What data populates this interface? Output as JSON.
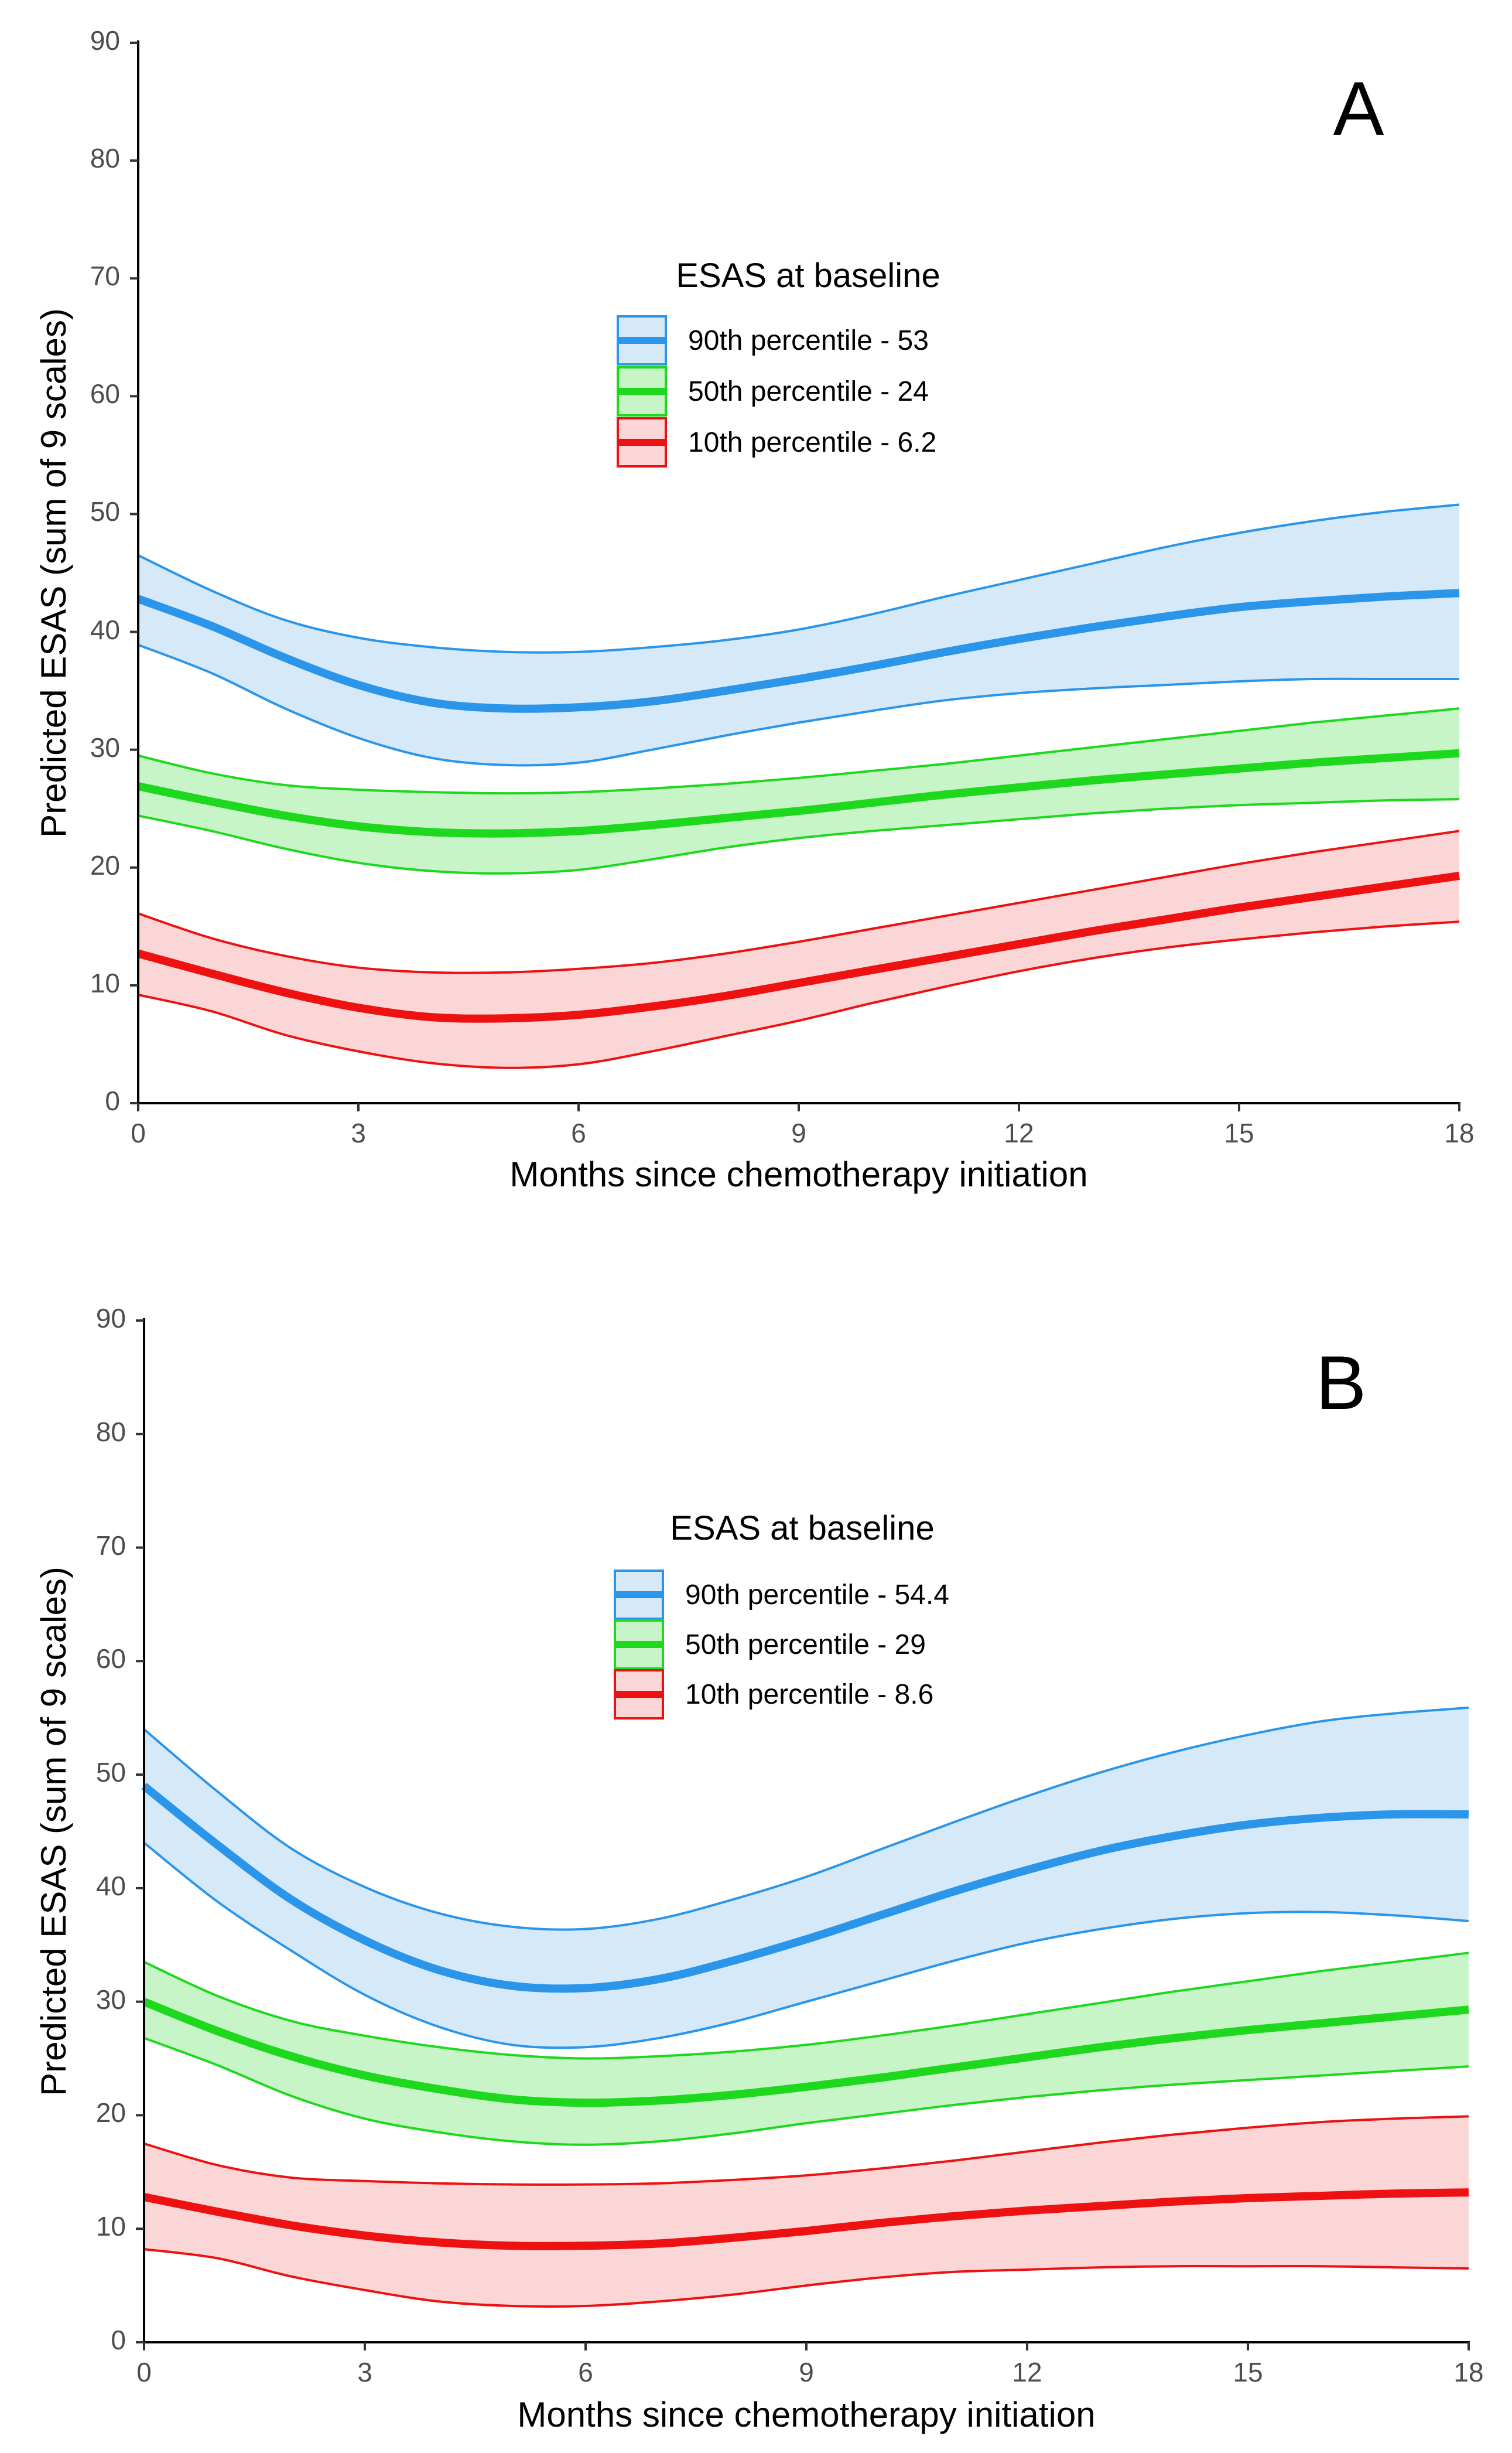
{
  "chart_data": [
    {
      "panel": "A",
      "type": "line",
      "xlabel": "Months since chemotherapy initiation",
      "ylabel": "Predicted ESAS (sum of 9 scales)",
      "xlim": [
        0,
        18
      ],
      "ylim": [
        0,
        90
      ],
      "xticks": [
        0,
        3,
        6,
        9,
        12,
        15,
        18
      ],
      "yticks": [
        0,
        10,
        20,
        30,
        40,
        50,
        60,
        70,
        80,
        90
      ],
      "legend_title": "ESAS at baseline",
      "x": [
        0,
        1,
        2,
        3,
        4,
        5,
        6,
        7,
        8,
        9,
        10,
        11,
        12,
        13,
        14,
        15,
        16,
        17,
        18
      ],
      "series": [
        {
          "name": "90th percentile - 53",
          "color": "#2b95ea",
          "fill": "#d5e9f9",
          "values": [
            42.8,
            40.5,
            37.8,
            35.5,
            34.0,
            33.5,
            33.6,
            34.1,
            35.0,
            36.0,
            37.1,
            38.3,
            39.4,
            40.4,
            41.3,
            42.1,
            42.6,
            43.0,
            43.3
          ],
          "upper": [
            46.5,
            43.5,
            41.0,
            39.5,
            38.7,
            38.3,
            38.3,
            38.7,
            39.3,
            40.2,
            41.5,
            43.0,
            44.4,
            45.8,
            47.2,
            48.4,
            49.4,
            50.2,
            50.8
          ],
          "lower": [
            38.9,
            36.5,
            33.5,
            31.0,
            29.3,
            28.7,
            28.9,
            30.0,
            31.2,
            32.3,
            33.3,
            34.2,
            34.8,
            35.2,
            35.5,
            35.8,
            36.0,
            36.0,
            36.0
          ]
        },
        {
          "name": "50th percentile - 24",
          "color": "#1ed81e",
          "fill": "#c7f5c7",
          "values": [
            26.9,
            25.6,
            24.4,
            23.5,
            23.0,
            22.9,
            23.1,
            23.6,
            24.2,
            24.8,
            25.5,
            26.2,
            26.8,
            27.4,
            27.9,
            28.4,
            28.9,
            29.3,
            29.7
          ],
          "upper": [
            29.5,
            28.0,
            27.0,
            26.6,
            26.4,
            26.3,
            26.4,
            26.7,
            27.1,
            27.6,
            28.2,
            28.8,
            29.5,
            30.2,
            30.9,
            31.6,
            32.3,
            32.9,
            33.5
          ],
          "lower": [
            24.4,
            23.1,
            21.6,
            20.4,
            19.7,
            19.5,
            19.8,
            20.7,
            21.7,
            22.5,
            23.1,
            23.6,
            24.1,
            24.6,
            25.0,
            25.3,
            25.5,
            25.7,
            25.8
          ]
        },
        {
          "name": "10th percentile - 6.2",
          "color": "#ee1111",
          "fill": "#fbd6d6",
          "values": [
            12.7,
            11.0,
            9.4,
            8.1,
            7.3,
            7.2,
            7.5,
            8.2,
            9.1,
            10.2,
            11.3,
            12.4,
            13.5,
            14.6,
            15.6,
            16.6,
            17.5,
            18.4,
            19.3
          ],
          "upper": [
            16.1,
            14.0,
            12.5,
            11.5,
            11.1,
            11.1,
            11.4,
            11.9,
            12.7,
            13.7,
            14.8,
            15.9,
            17.0,
            18.1,
            19.2,
            20.3,
            21.3,
            22.2,
            23.1
          ],
          "lower": [
            9.2,
            7.8,
            5.8,
            4.4,
            3.4,
            3.0,
            3.3,
            4.4,
            5.7,
            7.0,
            8.5,
            9.9,
            11.2,
            12.3,
            13.2,
            13.9,
            14.5,
            15.0,
            15.4
          ]
        }
      ]
    },
    {
      "panel": "B",
      "type": "line",
      "xlabel": "Months since chemotherapy initiation",
      "ylabel": "Predicted ESAS (sum of 9 scales)",
      "xlim": [
        0,
        18
      ],
      "ylim": [
        0,
        90
      ],
      "xticks": [
        0,
        3,
        6,
        9,
        12,
        15,
        18
      ],
      "yticks": [
        0,
        10,
        20,
        30,
        40,
        50,
        60,
        70,
        80,
        90
      ],
      "legend_title": "ESAS at baseline",
      "x": [
        0,
        1,
        2,
        3,
        4,
        5,
        6,
        7,
        8,
        9,
        10,
        11,
        12,
        13,
        14,
        15,
        16,
        17,
        18
      ],
      "series": [
        {
          "name": "90th percentile - 54.4",
          "color": "#2b95ea",
          "fill": "#d5e9f9",
          "values": [
            49.0,
            43.8,
            39.0,
            35.4,
            32.8,
            31.4,
            31.2,
            32.0,
            33.6,
            35.5,
            37.6,
            39.7,
            41.6,
            43.3,
            44.6,
            45.6,
            46.2,
            46.5,
            46.5
          ],
          "upper": [
            54.0,
            48.5,
            43.5,
            40.1,
            37.8,
            36.6,
            36.4,
            37.3,
            39.0,
            41.0,
            43.4,
            45.8,
            48.1,
            50.2,
            52.0,
            53.5,
            54.7,
            55.4,
            55.9
          ],
          "lower": [
            44.0,
            38.8,
            34.5,
            30.6,
            27.8,
            26.2,
            26.0,
            26.8,
            28.2,
            30.0,
            31.8,
            33.6,
            35.2,
            36.4,
            37.3,
            37.8,
            37.9,
            37.6,
            37.1
          ]
        },
        {
          "name": "50th percentile - 29",
          "color": "#1ed81e",
          "fill": "#c7f5c7",
          "values": [
            30.0,
            27.4,
            25.2,
            23.5,
            22.3,
            21.4,
            21.1,
            21.3,
            21.8,
            22.5,
            23.3,
            24.2,
            25.1,
            26.0,
            26.8,
            27.5,
            28.1,
            28.7,
            29.3
          ],
          "upper": [
            33.5,
            30.5,
            28.3,
            27.0,
            26.0,
            25.3,
            25.0,
            25.2,
            25.6,
            26.2,
            27.0,
            27.9,
            28.9,
            29.9,
            30.9,
            31.8,
            32.7,
            33.5,
            34.3
          ],
          "lower": [
            26.8,
            24.4,
            21.7,
            19.7,
            18.5,
            17.7,
            17.4,
            17.7,
            18.4,
            19.3,
            20.1,
            20.9,
            21.6,
            22.2,
            22.7,
            23.1,
            23.5,
            23.9,
            24.3
          ]
        },
        {
          "name": "10th percentile - 8.6",
          "color": "#ee1111",
          "fill": "#fbd6d6",
          "values": [
            12.8,
            11.5,
            10.3,
            9.4,
            8.8,
            8.5,
            8.5,
            8.7,
            9.2,
            9.8,
            10.5,
            11.1,
            11.6,
            12.0,
            12.4,
            12.7,
            12.9,
            13.1,
            13.2
          ],
          "upper": [
            17.5,
            15.6,
            14.5,
            14.2,
            14.0,
            13.9,
            13.9,
            14.0,
            14.3,
            14.7,
            15.3,
            16.0,
            16.8,
            17.6,
            18.3,
            18.9,
            19.4,
            19.7,
            19.9
          ],
          "lower": [
            8.2,
            7.4,
            5.8,
            4.6,
            3.6,
            3.2,
            3.2,
            3.6,
            4.2,
            5.0,
            5.7,
            6.2,
            6.4,
            6.6,
            6.7,
            6.7,
            6.7,
            6.6,
            6.5
          ]
        }
      ]
    }
  ]
}
